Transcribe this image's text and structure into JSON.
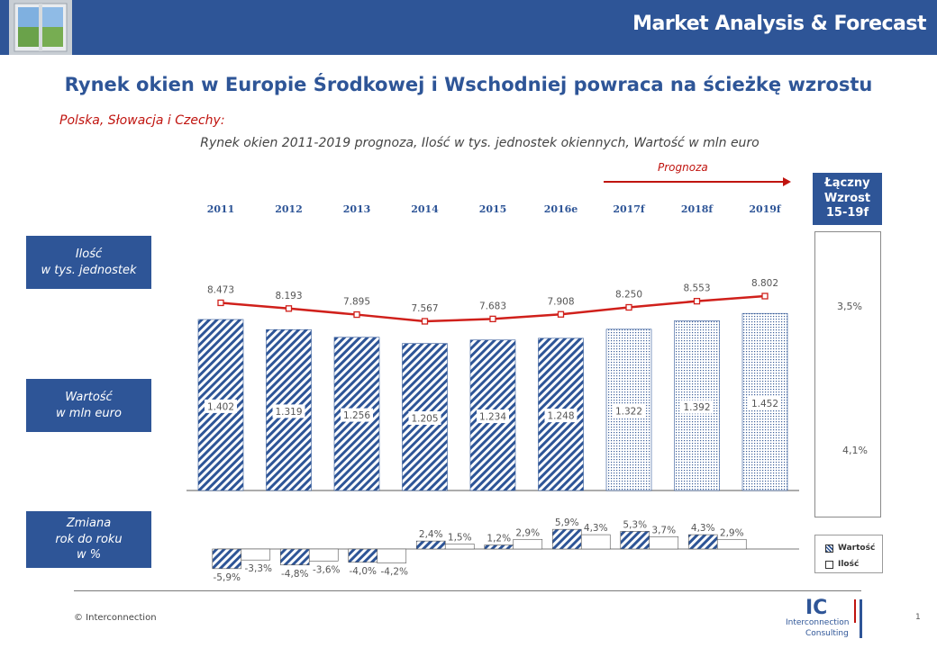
{
  "header": {
    "title": "Market Analysis & Forecast"
  },
  "title": "Rynek okien w Europie Środkowej i Wschodniej powraca na ścieżkę wzrostu",
  "region": "Polska, Słowacja i Czechy:",
  "subtitle": "Rynek okien 2011-2019 prognoza, Ilość w tys. jednostek okiennych, Wartość w mln euro",
  "forecast_label": "Prognoza",
  "row_labels": {
    "quantity": "Ilość\nw tys. jednostek",
    "value": "Wartość\nw mln euro",
    "change": "Zmiana\nrok do roku\nw %"
  },
  "growth": {
    "header": "Łączny\nWzrost\n15-19f",
    "quantity": "3,5%",
    "value": "4,1%"
  },
  "legend": {
    "value": "Wartość",
    "quantity": "Ilość"
  },
  "footer": {
    "copyright": "© Interconnection",
    "page": "1",
    "logo_mark": "IC",
    "logo_line1": "Interconnection",
    "logo_line2": "Consulting"
  },
  "colors": {
    "brand": "#2e5597",
    "accent_red": "#c0140f",
    "hatch": "#2e5597"
  },
  "chart_data": {
    "type": "bar",
    "categories": [
      "2011",
      "2012",
      "2013",
      "2014",
      "2015",
      "2016e",
      "2017f",
      "2018f",
      "2019f"
    ],
    "forecast_from_index": 6,
    "series": [
      {
        "name": "Wartość",
        "type": "bar",
        "values": [
          1402,
          1319,
          1256,
          1205,
          1234,
          1248,
          1322,
          1392,
          1452
        ],
        "labels": [
          "1.402",
          "1.319",
          "1.256",
          "1.205",
          "1.234",
          "1.248",
          "1.322",
          "1.392",
          "1.452"
        ]
      },
      {
        "name": "Ilość",
        "type": "line",
        "values": [
          8473,
          8193,
          7895,
          7567,
          7683,
          7908,
          8250,
          8553,
          8802
        ],
        "labels": [
          "8.473",
          "8.193",
          "7.895",
          "7.567",
          "7.683",
          "7.908",
          "8.250",
          "8.553",
          "8.802"
        ]
      }
    ],
    "change": {
      "value": {
        "values": [
          -5.9,
          -4.8,
          -4.0,
          2.4,
          1.2,
          5.9,
          5.3,
          4.3
        ],
        "labels": [
          "-5,9%",
          "-4,8%",
          "-4,0%",
          "2,4%",
          "1,2%",
          "5,9%",
          "5,3%",
          "4,3%"
        ]
      },
      "quantity": {
        "values": [
          -3.3,
          -3.6,
          -4.2,
          1.5,
          2.9,
          4.3,
          3.7,
          2.9
        ],
        "labels": [
          "-3,3%",
          "-3,6%",
          "-4,2%",
          "1,5%",
          "2,9%",
          "4,3%",
          "3,7%",
          "2,9%"
        ]
      }
    }
  }
}
